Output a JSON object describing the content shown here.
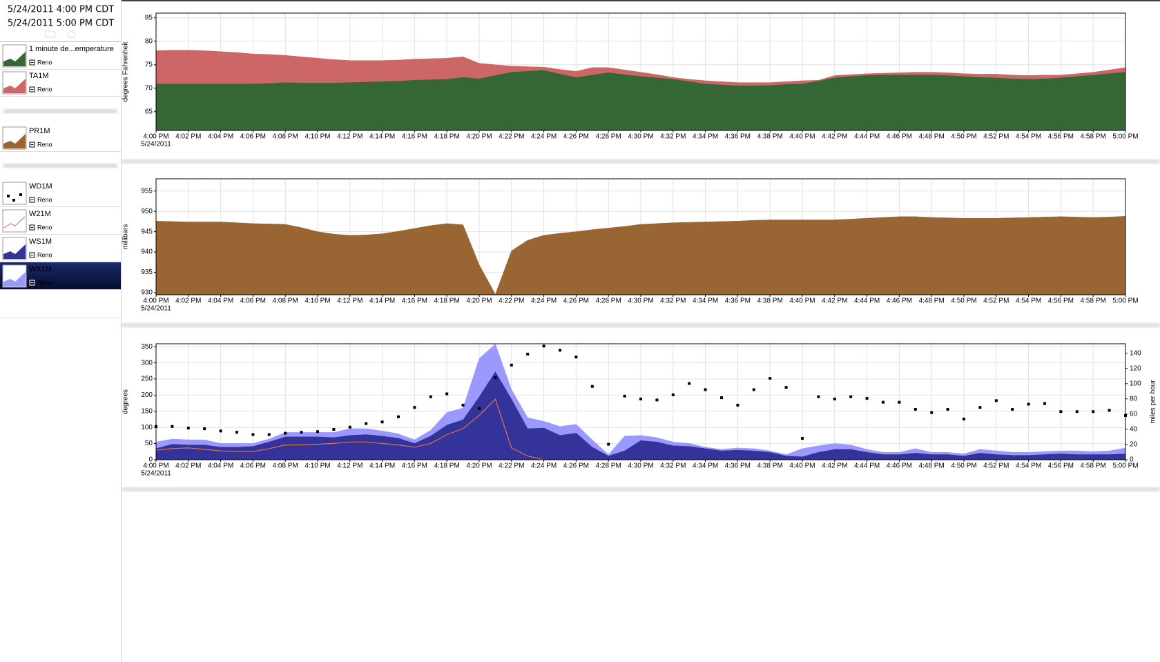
{
  "header": {
    "start": "5/24/2011 4:00 PM CDT",
    "end": "5/24/2011 5:00 PM CDT"
  },
  "chart_data": [
    {
      "type": "area",
      "y_label": "degrees Fahrenheit",
      "x_date_label": "5/24/2011",
      "grid": true,
      "categories": [
        "4:00 PM",
        null,
        "4:02 PM",
        null,
        "4:04 PM",
        null,
        "4:06 PM",
        null,
        "4:08 PM",
        null,
        "4:10 PM",
        null,
        "4:12 PM",
        null,
        "4:14 PM",
        null,
        "4:16 PM",
        null,
        "4:18 PM",
        null,
        "4:20 PM",
        null,
        "4:22 PM",
        null,
        "4:24 PM",
        null,
        "4:26 PM",
        null,
        "4:28 PM",
        null,
        "4:30 PM",
        null,
        "4:32 PM",
        null,
        "4:34 PM",
        null,
        "4:36 PM",
        null,
        "4:38 PM",
        null,
        "4:40 PM",
        null,
        "4:42 PM",
        null,
        "4:44 PM",
        null,
        "4:46 PM",
        null,
        "4:48 PM",
        null,
        "4:50 PM",
        null,
        "4:52 PM",
        null,
        "4:54 PM",
        null,
        "4:56 PM",
        null,
        "4:58 PM",
        null,
        "5:00 PM"
      ],
      "ylim": [
        61,
        86
      ],
      "yticks": [
        65,
        70,
        75,
        80,
        85
      ],
      "series": [
        {
          "name": "1 minute de...emperature",
          "station": "Reno",
          "type": "area",
          "color": "#356636",
          "values": [
            70.9,
            70.9,
            70.9,
            70.9,
            70.9,
            70.9,
            70.9,
            71.0,
            71.2,
            71.1,
            71.1,
            71.1,
            71.2,
            71.3,
            71.4,
            71.5,
            71.7,
            71.8,
            71.9,
            72.3,
            72.0,
            72.7,
            73.4,
            73.6,
            73.8,
            73.0,
            72.3,
            72.8,
            73.3,
            72.9,
            72.5,
            72.2,
            71.9,
            71.4,
            70.9,
            70.7,
            70.5,
            70.5,
            70.6,
            70.8,
            70.9,
            71.5,
            72.2,
            72.5,
            72.7,
            72.8,
            72.8,
            72.8,
            72.8,
            72.7,
            72.5,
            72.3,
            72.2,
            72.0,
            71.9,
            72.0,
            72.2,
            72.5,
            72.8,
            73.1,
            73.4
          ]
        },
        {
          "name": "TA1M",
          "station": "Reno",
          "type": "area",
          "color": "#cd6666",
          "values": [
            78.0,
            78.1,
            78.1,
            78.0,
            77.8,
            77.6,
            77.3,
            77.2,
            77.0,
            76.7,
            76.4,
            76.1,
            75.9,
            75.9,
            75.9,
            76.0,
            76.2,
            76.3,
            76.4,
            76.7,
            75.3,
            75.0,
            74.7,
            74.6,
            74.5,
            74.0,
            73.6,
            74.4,
            74.4,
            73.9,
            73.4,
            72.9,
            72.3,
            71.9,
            71.6,
            71.4,
            71.2,
            71.2,
            71.2,
            71.4,
            71.6,
            71.7,
            72.7,
            72.9,
            73.1,
            73.2,
            73.3,
            73.4,
            73.4,
            73.3,
            73.1,
            73.0,
            73.0,
            72.8,
            72.7,
            72.8,
            72.8,
            73.1,
            73.4,
            73.9,
            74.4
          ]
        }
      ]
    },
    {
      "type": "area",
      "y_label": "millibars",
      "x_date_label": "5/24/2011",
      "grid": true,
      "categories": [
        "4:00 PM",
        null,
        "4:02 PM",
        null,
        "4:04 PM",
        null,
        "4:06 PM",
        null,
        "4:08 PM",
        null,
        "4:10 PM",
        null,
        "4:12 PM",
        null,
        "4:14 PM",
        null,
        "4:16 PM",
        null,
        "4:18 PM",
        null,
        "4:20 PM",
        null,
        "4:22 PM",
        null,
        "4:24 PM",
        null,
        "4:26 PM",
        null,
        "4:28 PM",
        null,
        "4:30 PM",
        null,
        "4:32 PM",
        null,
        "4:34 PM",
        null,
        "4:36 PM",
        null,
        "4:38 PM",
        null,
        "4:40 PM",
        null,
        "4:42 PM",
        null,
        "4:44 PM",
        null,
        "4:46 PM",
        null,
        "4:48 PM",
        null,
        "4:50 PM",
        null,
        "4:52 PM",
        null,
        "4:54 PM",
        null,
        "4:56 PM",
        null,
        "4:58 PM",
        null,
        "5:00 PM"
      ],
      "ylim": [
        929.5,
        958
      ],
      "yticks": [
        930,
        935,
        940,
        945,
        950,
        955
      ],
      "series": [
        {
          "name": "PR1M",
          "station": "Reno",
          "type": "area",
          "color": "#996633",
          "values": [
            947.6,
            947.5,
            947.4,
            947.4,
            947.4,
            947.2,
            947.0,
            946.9,
            946.8,
            946.0,
            945.0,
            944.4,
            944.1,
            944.2,
            944.5,
            945.1,
            945.8,
            946.5,
            947.0,
            946.7,
            936.9,
            929.6,
            940.3,
            942.9,
            944.1,
            944.6,
            945.0,
            945.5,
            945.9,
            946.3,
            946.8,
            947.0,
            947.2,
            947.3,
            947.4,
            947.5,
            947.6,
            947.8,
            947.9,
            947.9,
            947.9,
            947.9,
            947.9,
            948.1,
            948.3,
            948.5,
            948.7,
            948.7,
            948.5,
            948.4,
            948.3,
            948.3,
            948.3,
            948.4,
            948.5,
            948.6,
            948.7,
            948.6,
            948.5,
            948.6,
            948.8
          ]
        }
      ]
    },
    {
      "type": "combo",
      "y_label": "degrees",
      "y2_label": "miles per hour",
      "x_date_label": "5/24/2011",
      "grid": true,
      "categories": [
        "4:00 PM",
        null,
        "4:02 PM",
        null,
        "4:04 PM",
        null,
        "4:06 PM",
        null,
        "4:08 PM",
        null,
        "4:10 PM",
        null,
        "4:12 PM",
        null,
        "4:14 PM",
        null,
        "4:16 PM",
        null,
        "4:18 PM",
        null,
        "4:20 PM",
        null,
        "4:22 PM",
        null,
        "4:24 PM",
        null,
        "4:26 PM",
        null,
        "4:28 PM",
        null,
        "4:30 PM",
        null,
        "4:32 PM",
        null,
        "4:34 PM",
        null,
        "4:36 PM",
        null,
        "4:38 PM",
        null,
        "4:40 PM",
        null,
        "4:42 PM",
        null,
        "4:44 PM",
        null,
        "4:46 PM",
        null,
        "4:48 PM",
        null,
        "4:50 PM",
        null,
        "4:52 PM",
        null,
        "4:54 PM",
        null,
        "4:56 PM",
        null,
        "4:58 PM",
        null,
        "5:00 PM"
      ],
      "ylim": [
        0,
        359
      ],
      "yticks": [
        0,
        50,
        100,
        150,
        200,
        250,
        300,
        350
      ],
      "y2lim": [
        0,
        152.4
      ],
      "y2ticks": [
        0,
        20,
        40,
        60,
        80,
        100,
        120,
        140
      ],
      "series": [
        {
          "name": "WD1M",
          "station": "Reno",
          "type": "scatter",
          "color": "#000000",
          "values": [
            103,
            103,
            98,
            96,
            89,
            85,
            78,
            78,
            82,
            85,
            87,
            94,
            101,
            112,
            117,
            133,
            162,
            195,
            204,
            169,
            158,
            254,
            293,
            327,
            352,
            339,
            318,
            227,
            48,
            197,
            188,
            185,
            201,
            236,
            217,
            192,
            169,
            217,
            252,
            224,
            66,
            195,
            188,
            195,
            190,
            178,
            178,
            156,
            146,
            156,
            126,
            162,
            183,
            156,
            172,
            174,
            149,
            149,
            149,
            153,
            137
          ]
        },
        {
          "name": "W21M",
          "station": "Reno",
          "type": "line",
          "axis": "y2",
          "color": "#e07050",
          "values": [
            12.6,
            14.6,
            15.5,
            13.6,
            11.7,
            10.7,
            10.7,
            14.6,
            19.4,
            19.4,
            20.4,
            21.4,
            23.3,
            23.3,
            21.4,
            19.4,
            16.5,
            21.4,
            33.0,
            40.8,
            58.3,
            79.6,
            15.5,
            4.9,
            0,
            null,
            null,
            null,
            null,
            null,
            null,
            null,
            null,
            null,
            null,
            null,
            null,
            null,
            null,
            null,
            null,
            null,
            null,
            null,
            null,
            null,
            null,
            null,
            null,
            null,
            null,
            null,
            null,
            null,
            null,
            null,
            null,
            null,
            null,
            null,
            null
          ]
        },
        {
          "name": "WS1M",
          "station": "Reno",
          "type": "area",
          "axis": "y2",
          "color": "#333399",
          "values": [
            14.6,
            20.4,
            19.4,
            19.4,
            16.5,
            16.5,
            17.5,
            23.3,
            30.1,
            30.1,
            30.1,
            29.1,
            32.0,
            33.0,
            31.1,
            28.2,
            21.4,
            31.1,
            45.6,
            52.4,
            82.5,
            115.5,
            79.6,
            40.8,
            41.7,
            32.0,
            35.0,
            16.5,
            4.9,
            11.7,
            25.2,
            23.3,
            18.4,
            17.5,
            14.6,
            11.7,
            12.6,
            11.7,
            9.7,
            4.9,
            3.9,
            9.7,
            13.6,
            13.6,
            9.7,
            6.8,
            6.8,
            8.7,
            6.8,
            6.8,
            4.9,
            8.7,
            6.8,
            5.8,
            5.8,
            6.8,
            7.8,
            6.8,
            6.8,
            6.8,
            7.8
          ]
        },
        {
          "name": "WX1M",
          "station": "Reno",
          "type": "area",
          "axis": "y2",
          "color": "#9999ff",
          "values": [
            23.3,
            27.2,
            26.2,
            26.2,
            21.4,
            21.4,
            21.4,
            27.2,
            35.9,
            35.9,
            35.9,
            35.9,
            40.8,
            40.8,
            37.9,
            34.0,
            26.2,
            38.8,
            62.1,
            68.0,
            133.0,
            152.0,
            92.2,
            55.3,
            50.5,
            43.7,
            46.6,
            26.2,
            6.8,
            31.1,
            32.0,
            29.1,
            23.3,
            21.4,
            16.5,
            13.6,
            15.5,
            14.6,
            11.7,
            6.8,
            14.6,
            18.4,
            21.4,
            19.4,
            13.6,
            9.7,
            9.7,
            14.6,
            9.7,
            9.7,
            7.8,
            13.6,
            11.7,
            9.7,
            9.7,
            10.7,
            11.7,
            11.7,
            10.7,
            11.7,
            15.5
          ]
        }
      ]
    }
  ]
}
